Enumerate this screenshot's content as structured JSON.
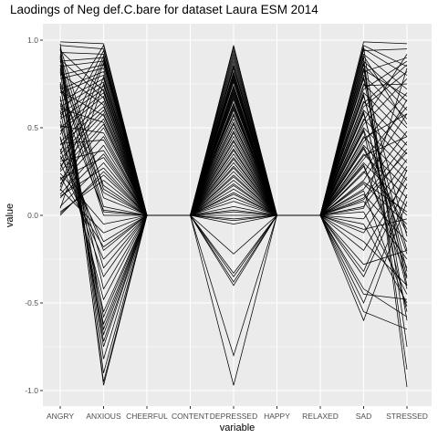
{
  "chart_data": {
    "type": "line",
    "title": "Laodings of Neg def.C.bare for dataset Laura ESM 2014",
    "xlabel": "variable",
    "ylabel": "value",
    "categories": [
      "ANGRY",
      "ANXIOUS",
      "CHEERFUL",
      "CONTENT",
      "DEPRESSED",
      "HAPPY",
      "RELAXED",
      "SAD",
      "STRESSED"
    ],
    "ylim": [
      -1.05,
      1.0
    ],
    "yticks": [
      1.0,
      0.5,
      0.0,
      -0.5,
      -1.0
    ],
    "ytick_labels": [
      "1.0",
      "0.5",
      "0.0",
      "-0.5",
      "-1.0"
    ],
    "grid": true,
    "background": "#ebebeb",
    "line_color": "#000000",
    "series": [
      {
        "values": [
          0.99,
          0.98,
          0,
          0,
          0.96,
          0,
          0,
          0.99,
          0.98
        ]
      },
      {
        "values": [
          0.97,
          0.95,
          0,
          0,
          0.92,
          0,
          0,
          0.97,
          0.85
        ]
      },
      {
        "values": [
          0.95,
          -0.97,
          0,
          0,
          -0.97,
          0,
          0,
          0.95,
          0.8
        ]
      },
      {
        "values": [
          0.93,
          0.92,
          0,
          0,
          0.88,
          0,
          0,
          0.94,
          0.95
        ]
      },
      {
        "values": [
          0.9,
          -0.95,
          0,
          0,
          0.85,
          0,
          0,
          0.92,
          0.72
        ]
      },
      {
        "values": [
          0.88,
          0.9,
          0,
          0,
          0.82,
          0,
          0,
          0.9,
          -0.98
        ]
      },
      {
        "values": [
          0.85,
          0.88,
          0,
          0,
          0.8,
          0,
          0,
          0.88,
          0.65
        ]
      },
      {
        "values": [
          0.82,
          -0.75,
          0,
          0,
          0.78,
          0,
          0,
          0.86,
          0.6
        ]
      },
      {
        "values": [
          0.8,
          0.86,
          0,
          0,
          0.76,
          0,
          0,
          0.84,
          -0.6
        ]
      },
      {
        "values": [
          0.78,
          0.84,
          0,
          0,
          0.74,
          0,
          0,
          0.82,
          0.9
        ]
      },
      {
        "values": [
          0.75,
          -0.72,
          0,
          0,
          0.72,
          0,
          0,
          0.8,
          0.55
        ]
      },
      {
        "values": [
          0.72,
          0.82,
          0,
          0,
          0.7,
          0,
          0,
          0.78,
          -0.4
        ]
      },
      {
        "values": [
          0.7,
          0.8,
          0,
          0,
          0.68,
          0,
          0,
          0.75,
          0.5
        ]
      },
      {
        "values": [
          0.68,
          -0.68,
          0,
          0,
          0.66,
          0,
          0,
          0.72,
          0.88
        ]
      },
      {
        "values": [
          0.65,
          0.78,
          0,
          0,
          0.64,
          0,
          0,
          0.7,
          0.45
        ]
      },
      {
        "values": [
          0.62,
          0.76,
          0,
          0,
          0.62,
          0,
          0,
          0.68,
          -0.2
        ]
      },
      {
        "values": [
          0.6,
          -0.62,
          0,
          0,
          0.6,
          0,
          0,
          0.65,
          0.4
        ]
      },
      {
        "values": [
          0.58,
          0.74,
          0,
          0,
          0.58,
          0,
          0,
          0.62,
          0.82
        ]
      },
      {
        "values": [
          0.55,
          0.72,
          0,
          0,
          0.55,
          0,
          0,
          0.6,
          0.35
        ]
      },
      {
        "values": [
          0.52,
          -0.55,
          0,
          0,
          0.52,
          0,
          0,
          0.58,
          -0.35
        ]
      },
      {
        "values": [
          0.5,
          0.7,
          0,
          0,
          0.5,
          0,
          0,
          0.55,
          0.3
        ]
      },
      {
        "values": [
          0.48,
          0.68,
          0,
          0,
          0.48,
          0,
          0,
          0.52,
          0.78
        ]
      },
      {
        "values": [
          0.45,
          -0.48,
          0,
          0,
          0.45,
          0,
          0,
          0.5,
          0.25
        ]
      },
      {
        "values": [
          0.42,
          0.65,
          0,
          0,
          0.42,
          0,
          0,
          0.48,
          -0.55
        ]
      },
      {
        "values": [
          0.4,
          0.62,
          0,
          0,
          0.4,
          0,
          0,
          0.45,
          0.2
        ]
      },
      {
        "values": [
          0.38,
          -0.35,
          0,
          0,
          0.38,
          0,
          0,
          0.42,
          0.7
        ]
      },
      {
        "values": [
          0.35,
          0.6,
          0,
          0,
          0.35,
          0,
          0,
          0.4,
          0.15
        ]
      },
      {
        "values": [
          0.32,
          0.58,
          0,
          0,
          0.32,
          0,
          0,
          0.38,
          -0.1
        ]
      },
      {
        "values": [
          0.3,
          -0.25,
          0,
          0,
          0.3,
          0,
          0,
          0.35,
          0.1
        ]
      },
      {
        "values": [
          0.28,
          0.55,
          0,
          0,
          0.28,
          0,
          0,
          0.32,
          0.62
        ]
      },
      {
        "values": [
          0.25,
          0.52,
          0,
          0,
          0.25,
          0,
          0,
          0.3,
          0.05
        ]
      },
      {
        "values": [
          0.22,
          -0.18,
          0,
          0,
          0.22,
          0,
          0,
          0.28,
          -0.3
        ]
      },
      {
        "values": [
          0.2,
          0.5,
          0,
          0,
          0.2,
          0,
          0,
          0.25,
          0.0
        ]
      },
      {
        "values": [
          0.18,
          0.45,
          0,
          0,
          0.18,
          0,
          0,
          0.2,
          0.58
        ]
      },
      {
        "values": [
          0.15,
          -0.1,
          0,
          0,
          0.15,
          0,
          0,
          0.18,
          -0.05
        ]
      },
      {
        "values": [
          0.12,
          0.4,
          0,
          0,
          0.12,
          0,
          0,
          0.15,
          0.48
        ]
      },
      {
        "values": [
          0.1,
          0.35,
          0,
          0,
          0.1,
          0,
          0,
          0.12,
          -0.15
        ]
      },
      {
        "values": [
          0.05,
          0.3,
          0,
          0,
          0.08,
          0,
          0,
          0.1,
          0.42
        ]
      },
      {
        "values": [
          0.0,
          0.25,
          0,
          0,
          0.05,
          0,
          0,
          0.08,
          -0.25
        ]
      },
      {
        "values": [
          0.02,
          0.2,
          0,
          0,
          0.03,
          0,
          0,
          0.05,
          0.38
        ]
      },
      {
        "values": [
          0.96,
          0.15,
          0,
          0,
          0.02,
          0,
          0,
          0.02,
          -0.45
        ]
      },
      {
        "values": [
          0.92,
          0.1,
          0,
          0,
          0.0,
          0,
          0,
          -0.02,
          0.32
        ]
      },
      {
        "values": [
          0.88,
          0.05,
          0,
          0,
          -0.02,
          0,
          0,
          -0.05,
          -0.5
        ]
      },
      {
        "values": [
          0.84,
          0.02,
          0,
          0,
          -0.03,
          0,
          0,
          -0.1,
          0.28
        ]
      },
      {
        "values": [
          0.76,
          0.0,
          0,
          0,
          -0.05,
          0,
          0,
          -0.15,
          -0.4
        ]
      },
      {
        "values": [
          0.66,
          0.03,
          0,
          0,
          -0.22,
          0,
          0,
          -0.2,
          0.22
        ]
      },
      {
        "values": [
          0.56,
          0.97,
          0,
          0,
          -0.35,
          0,
          0,
          -0.28,
          -0.2
        ]
      },
      {
        "values": [
          0.46,
          0.94,
          0,
          0,
          -0.38,
          0,
          0,
          -0.35,
          0.18
        ]
      },
      {
        "values": [
          0.36,
          0.91,
          0,
          0,
          -0.33,
          0,
          0,
          -0.42,
          -0.58
        ]
      },
      {
        "values": [
          0.26,
          0.89,
          0,
          0,
          -0.8,
          0,
          0,
          -0.5,
          0.12
        ]
      },
      {
        "values": [
          0.16,
          0.87,
          0,
          0,
          -0.4,
          0,
          0,
          -0.55,
          -0.65
        ]
      },
      {
        "values": [
          0.98,
          -0.9,
          0,
          0,
          0.97,
          0,
          0,
          -0.6,
          0.08
        ]
      },
      {
        "values": [
          0.91,
          -0.82,
          0,
          0,
          0.94,
          0,
          0,
          0.96,
          -0.75
        ]
      },
      {
        "values": [
          0.86,
          -0.65,
          0,
          0,
          0.9,
          0,
          0,
          0.91,
          0.52
        ]
      },
      {
        "values": [
          0.74,
          -0.58,
          0,
          0,
          0.86,
          0,
          0,
          0.87,
          -0.88
        ]
      },
      {
        "values": [
          0.64,
          -0.42,
          0,
          0,
          0.84,
          0,
          0,
          0.83,
          0.68
        ]
      },
      {
        "values": [
          0.54,
          -0.3,
          0,
          0,
          0.81,
          0,
          0,
          0.79,
          -0.12
        ]
      },
      {
        "values": [
          0.44,
          -0.2,
          0,
          0,
          0.79,
          0,
          0,
          0.74,
          0.75
        ]
      },
      {
        "values": [
          0.34,
          -0.15,
          0,
          0,
          0.77,
          0,
          0,
          0.69,
          -0.32
        ]
      },
      {
        "values": [
          0.24,
          -0.05,
          0,
          0,
          0.73,
          0,
          0,
          0.64,
          0.86
        ]
      },
      {
        "values": [
          0.14,
          0.79,
          0,
          0,
          0.71,
          0,
          0,
          0.59,
          -0.42
        ]
      },
      {
        "values": [
          0.04,
          0.75,
          0,
          0,
          0.69,
          0,
          0,
          0.54,
          0.92
        ]
      },
      {
        "values": [
          0.94,
          0.71,
          0,
          0,
          0.67,
          0,
          0,
          0.49,
          -0.22
        ]
      },
      {
        "values": [
          0.89,
          0.67,
          0,
          0,
          0.63,
          0,
          0,
          0.44,
          0.58
        ]
      },
      {
        "values": [
          0.81,
          0.63,
          0,
          0,
          0.61,
          0,
          0,
          0.39,
          -0.08
        ]
      },
      {
        "values": [
          0.71,
          0.57,
          0,
          0,
          0.57,
          0,
          0,
          0.34,
          0.45
        ]
      },
      {
        "values": [
          0.61,
          0.53,
          0,
          0,
          0.53,
          0,
          0,
          0.29,
          -0.36
        ]
      },
      {
        "values": [
          0.51,
          0.47,
          0,
          0,
          0.47,
          0,
          0,
          0.24,
          0.66
        ]
      },
      {
        "values": [
          0.41,
          0.43,
          0,
          0,
          0.43,
          0,
          0,
          0.19,
          0.02
        ]
      },
      {
        "values": [
          0.31,
          0.37,
          0,
          0,
          0.37,
          0,
          0,
          0.14,
          -0.52
        ]
      },
      {
        "values": [
          0.21,
          0.33,
          0,
          0,
          0.33,
          0,
          0,
          0.09,
          0.36
        ]
      },
      {
        "values": [
          0.11,
          0.27,
          0,
          0,
          0.27,
          0,
          0,
          0.04,
          0.84
        ]
      },
      {
        "values": [
          0.01,
          0.23,
          0,
          0,
          0.23,
          0,
          0,
          -0.08,
          -0.02
        ]
      },
      {
        "values": [
          0.83,
          0.17,
          0,
          0,
          0.17,
          0,
          0,
          -0.32,
          0.26
        ]
      },
      {
        "values": [
          0.73,
          0.13,
          0,
          0,
          0.13,
          0,
          0,
          -0.45,
          -0.48
        ]
      }
    ]
  }
}
